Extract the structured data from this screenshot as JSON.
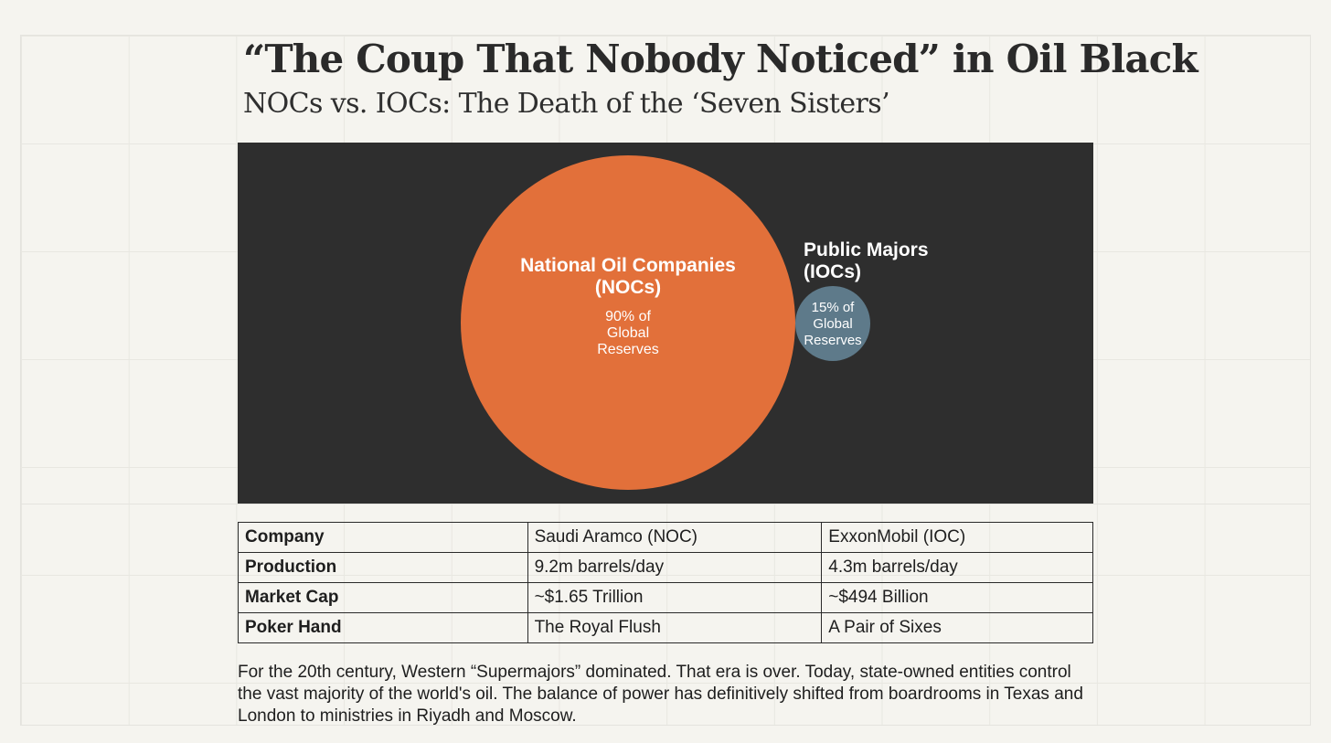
{
  "header": {
    "title": "“The Coup That Nobody Noticed” in Oil Black",
    "subtitle": "NOCs vs. IOCs: The Death of the ‘Seven Sisters’"
  },
  "diagram": {
    "background_color": "#2e2e2e",
    "noc": {
      "label_line1": "National Oil Companies",
      "label_line2": "(NOCs)",
      "value_line1": "90% of",
      "value_line2": "Global",
      "value_line3": "Reserves",
      "color": "#e2703a"
    },
    "ioc": {
      "label_line1": "Public Majors",
      "label_line2": "(IOCs)",
      "value_line1": "15% of",
      "value_line2": "Global",
      "value_line3": "Reserves",
      "color": "#5e7a8a"
    }
  },
  "table": {
    "rows": [
      [
        "Company",
        "Saudi Aramco (NOC)",
        "ExxonMobil (IOC)"
      ],
      [
        "Production",
        "9.2m barrels/day",
        "4.3m barrels/day"
      ],
      [
        "Market Cap",
        "~$1.65 Trillion",
        "~$494 Billion"
      ],
      [
        "Poker Hand",
        "The Royal Flush",
        "A Pair of Sixes"
      ]
    ]
  },
  "body": {
    "paragraph": "For the 20th century, Western “Supermajors” dominated. That era is over. Today, state-owned entities control the vast majority of the world's oil. The balance of power has definitively shifted from boardrooms in Texas and London to ministries in Riyadh and Moscow."
  }
}
